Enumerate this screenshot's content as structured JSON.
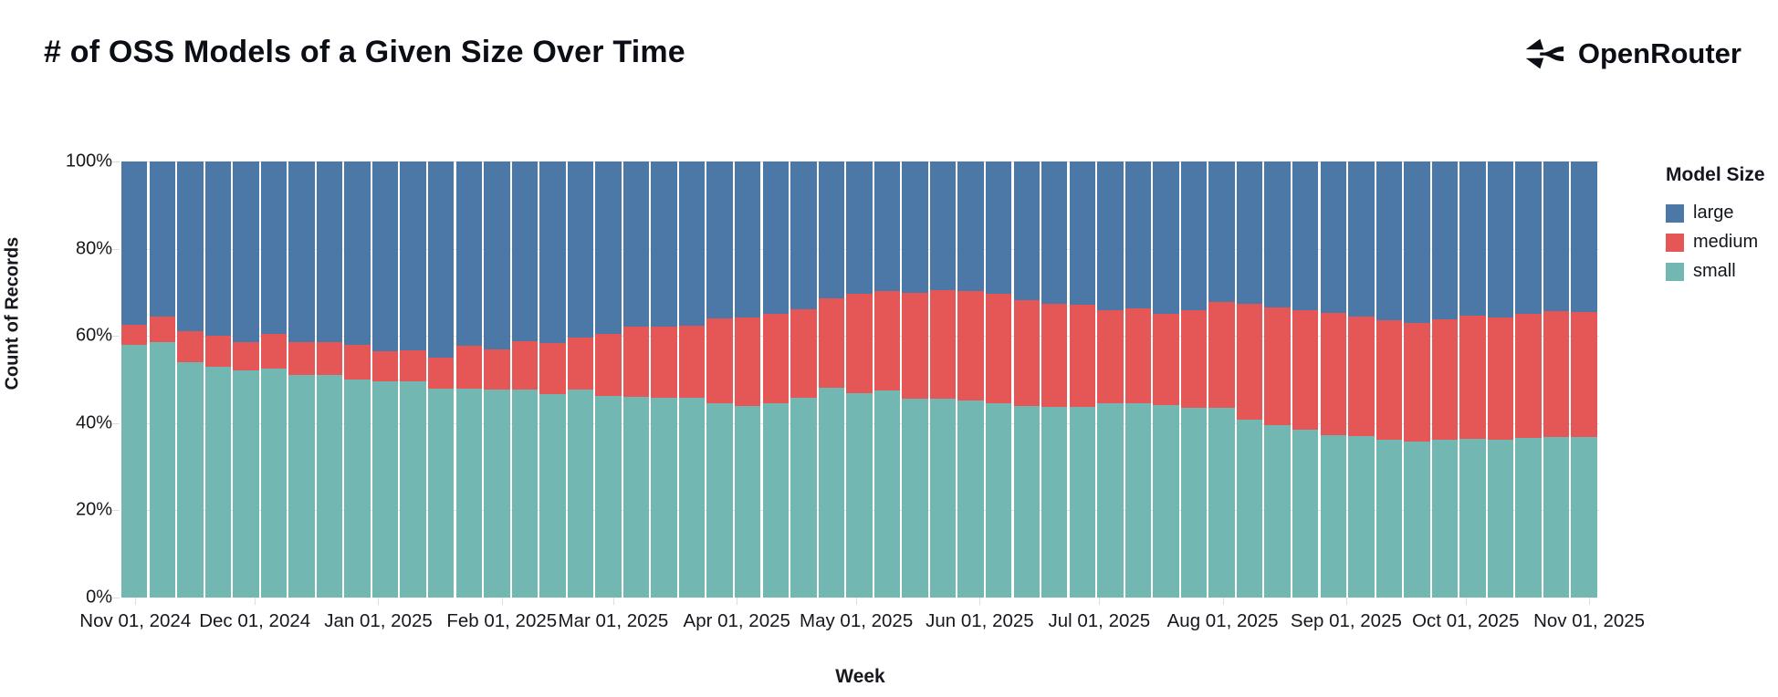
{
  "header": {
    "title": "# of OSS Models of a Given Size Over Time",
    "brand": "OpenRouter"
  },
  "chart_data": {
    "type": "bar",
    "stacked": true,
    "normalized_percent": true,
    "title": "# of OSS Models of a Given Size Over Time",
    "xlabel": "Week",
    "ylabel": "Count of Records",
    "ylim": [
      0,
      100
    ],
    "grid": "horizontal-faint",
    "legend_position": "right",
    "legend": {
      "title": "Model Size",
      "entries": [
        {
          "label": "large",
          "color": "#4c78a8"
        },
        {
          "label": "medium",
          "color": "#e45756"
        },
        {
          "label": "small",
          "color": "#72b7b2"
        }
      ]
    },
    "yticks": [
      {
        "value": 0,
        "label": "0%"
      },
      {
        "value": 20,
        "label": "20%"
      },
      {
        "value": 40,
        "label": "40%"
      },
      {
        "value": 60,
        "label": "60%"
      },
      {
        "value": 80,
        "label": "80%"
      },
      {
        "value": 100,
        "label": "100%"
      }
    ],
    "month_ticks": [
      {
        "label": "Nov 01, 2024",
        "day": 0
      },
      {
        "label": "Dec 01, 2024",
        "day": 30
      },
      {
        "label": "Jan 01, 2025",
        "day": 61
      },
      {
        "label": "Feb 01, 2025",
        "day": 92
      },
      {
        "label": "Mar 01, 2025",
        "day": 120
      },
      {
        "label": "Apr 01, 2025",
        "day": 151
      },
      {
        "label": "May 01, 2025",
        "day": 181
      },
      {
        "label": "Jun 01, 2025",
        "day": 212
      },
      {
        "label": "Jul 01, 2025",
        "day": 242
      },
      {
        "label": "Aug 01, 2025",
        "day": 273
      },
      {
        "label": "Sep 01, 2025",
        "day": 304
      },
      {
        "label": "Oct 01, 2025",
        "day": 334
      },
      {
        "label": "Nov 01, 2025",
        "day": 365
      }
    ],
    "weeks": [
      "2024-11-01",
      "2024-11-08",
      "2024-11-15",
      "2024-11-22",
      "2024-11-29",
      "2024-12-06",
      "2024-12-13",
      "2024-12-20",
      "2024-12-27",
      "2025-01-03",
      "2025-01-10",
      "2025-01-17",
      "2025-01-24",
      "2025-01-31",
      "2025-02-07",
      "2025-02-14",
      "2025-02-21",
      "2025-02-28",
      "2025-03-07",
      "2025-03-14",
      "2025-03-21",
      "2025-03-28",
      "2025-04-04",
      "2025-04-11",
      "2025-04-18",
      "2025-04-25",
      "2025-05-02",
      "2025-05-09",
      "2025-05-16",
      "2025-05-23",
      "2025-05-30",
      "2025-06-06",
      "2025-06-13",
      "2025-06-20",
      "2025-06-27",
      "2025-07-04",
      "2025-07-11",
      "2025-07-18",
      "2025-07-25",
      "2025-08-01",
      "2025-08-08",
      "2025-08-15",
      "2025-08-22",
      "2025-08-29",
      "2025-09-05",
      "2025-09-12",
      "2025-09-19",
      "2025-09-26",
      "2025-10-03",
      "2025-10-10",
      "2025-10-17",
      "2025-10-24",
      "2025-10-31"
    ],
    "series": [
      {
        "name": "small",
        "color": "#72b7b2",
        "values": [
          58.0,
          58.5,
          54.0,
          53.0,
          52.0,
          52.5,
          51.0,
          51.0,
          50.0,
          49.5,
          49.5,
          47.9,
          47.9,
          47.8,
          47.6,
          46.7,
          47.6,
          46.3,
          46.1,
          45.9,
          45.9,
          44.6,
          43.9,
          44.5,
          45.9,
          48.1,
          46.9,
          47.4,
          45.7,
          45.7,
          45.1,
          44.6,
          43.9,
          43.7,
          43.7,
          44.6,
          44.6,
          44.1,
          43.6,
          43.6,
          40.8,
          39.5,
          38.4,
          37.3,
          37.0,
          36.3,
          35.7,
          36.2,
          36.4,
          36.2,
          36.6,
          36.8,
          36.8
        ]
      },
      {
        "name": "medium",
        "color": "#e45756",
        "values": [
          4.5,
          6.0,
          7.0,
          7.0,
          6.5,
          8.0,
          7.5,
          7.5,
          8.0,
          7.0,
          7.1,
          7.2,
          9.8,
          9.2,
          11.2,
          11.7,
          12.0,
          14.2,
          16.0,
          16.2,
          16.5,
          19.4,
          20.3,
          20.5,
          20.2,
          20.6,
          22.8,
          22.8,
          24.2,
          24.9,
          25.1,
          25.1,
          24.4,
          23.7,
          23.4,
          21.4,
          21.7,
          20.9,
          22.4,
          24.2,
          26.5,
          27.1,
          27.6,
          28.0,
          27.5,
          27.4,
          27.3,
          27.6,
          28.3,
          28.0,
          28.4,
          28.9,
          28.7
        ]
      },
      {
        "name": "large",
        "color": "#4c78a8",
        "values": [
          37.5,
          35.5,
          39.0,
          40.0,
          41.5,
          39.5,
          41.5,
          41.5,
          42.0,
          43.5,
          43.4,
          44.9,
          42.3,
          43.0,
          41.2,
          41.6,
          40.4,
          39.5,
          37.9,
          37.9,
          37.6,
          36.0,
          35.8,
          35.0,
          33.9,
          31.3,
          30.3,
          29.8,
          30.1,
          29.4,
          29.8,
          30.3,
          31.7,
          32.6,
          32.9,
          34.0,
          33.7,
          35.0,
          34.0,
          32.2,
          32.7,
          33.4,
          34.0,
          34.7,
          35.5,
          36.3,
          37.0,
          36.2,
          35.3,
          35.8,
          35.0,
          34.3,
          34.5
        ]
      }
    ]
  }
}
